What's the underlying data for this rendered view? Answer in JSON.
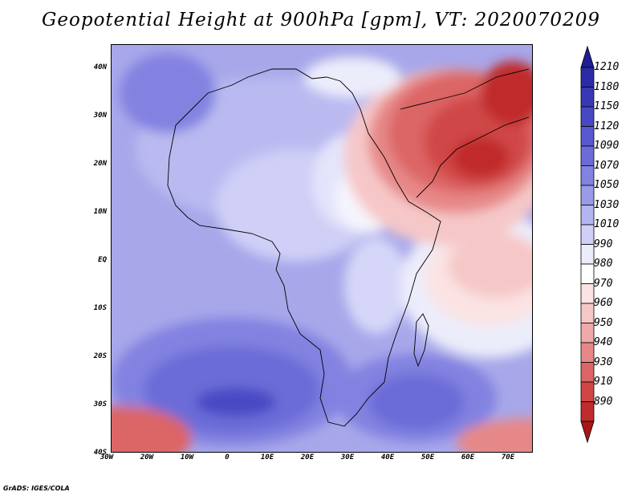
{
  "title": "Geopotential Height at 900hPa [gpm], VT: 2020070209",
  "footer": "GrADS: IGES/COLA",
  "map": {
    "lon_range": [
      -30,
      75
    ],
    "lat_range": [
      -40,
      45
    ],
    "y_ticks": [
      "40N",
      "30N",
      "20N",
      "10N",
      "EQ",
      "10S",
      "20S",
      "30S",
      "40S"
    ],
    "x_ticks": [
      "30W",
      "20W",
      "10W",
      "0",
      "10E",
      "20E",
      "30E",
      "40E",
      "50E",
      "60E",
      "70E"
    ]
  },
  "colorbar": {
    "levels": [
      "1210",
      "1180",
      "1150",
      "1120",
      "1090",
      "1070",
      "1050",
      "1030",
      "1010",
      "990",
      "980",
      "970",
      "960",
      "950",
      "940",
      "930",
      "910",
      "890"
    ],
    "colors": [
      "#1e1e96",
      "#2b2ba6",
      "#3838b5",
      "#4848c4",
      "#5858cf",
      "#6c6cd8",
      "#8282e1",
      "#9a9ae9",
      "#b4b4f1",
      "#cfcff7",
      "#ecedfb",
      "#ffffff",
      "#fbe3e3",
      "#f6c7c7",
      "#efa9a9",
      "#e78888",
      "#dc6565",
      "#d04646",
      "#c02b2b",
      "#a81616"
    ]
  },
  "chart_data": {
    "type": "heatmap",
    "title": "Geopotential Height at 900hPa [gpm], VT: 2020070209",
    "xlabel": "",
    "ylabel": "",
    "x_range": [
      -30,
      75
    ],
    "y_range": [
      -40,
      45
    ],
    "colorbar_levels": [
      1210,
      1180,
      1150,
      1120,
      1090,
      1070,
      1050,
      1030,
      1010,
      990,
      980,
      970,
      960,
      950,
      940,
      930,
      910,
      890
    ]
  }
}
